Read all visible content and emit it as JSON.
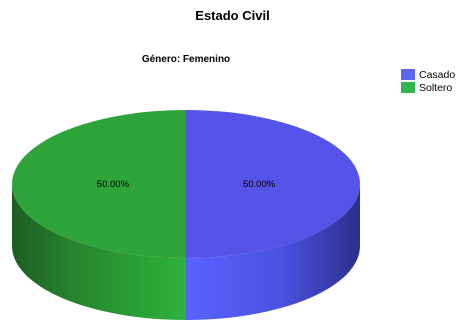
{
  "chart_data": {
    "type": "pie",
    "title": "Estado Civil",
    "subtitle": "Género: Femenino",
    "slices": [
      {
        "label": "Casado",
        "value": 50.0,
        "display": "50.00%",
        "color": "#5454e8"
      },
      {
        "label": "Soltero",
        "value": 50.0,
        "display": "50.00%",
        "color": "#2ea43a"
      }
    ],
    "legend_position": "right",
    "style": "3d"
  }
}
